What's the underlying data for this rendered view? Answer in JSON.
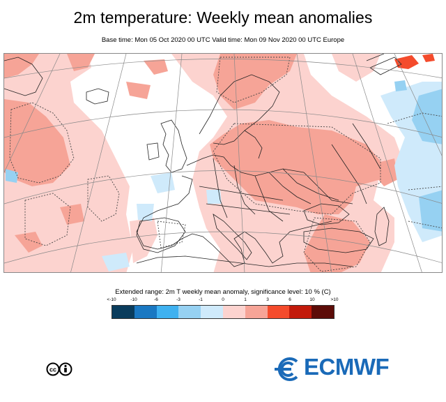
{
  "header": {
    "title": "2m temperature: Weekly mean anomalies",
    "subtitle": "Base time: Mon 05 Oct 2020 00 UTC Valid time: Mon 09 Nov 2020 00 UTC Europe"
  },
  "legend": {
    "title": "Extended range: 2m T weekly mean anomaly, significance level: 10 % (C)",
    "ticks": [
      "<-10",
      "-10",
      "-6",
      "-3",
      "-1",
      "0",
      "1",
      "3",
      "6",
      "10",
      ">10"
    ],
    "colors": [
      "#0a3c5c",
      "#1a78c2",
      "#3fb1f0",
      "#96d1f2",
      "#cfeafb",
      "#fcd3cf",
      "#f6a497",
      "#f44b2c",
      "#c21a0b",
      "#5c0c08"
    ]
  },
  "footer": {
    "license_icon": "cc-by-icon",
    "logo_text": "ECMWF",
    "logo_icon": "ecmwf-logo-icon"
  }
}
